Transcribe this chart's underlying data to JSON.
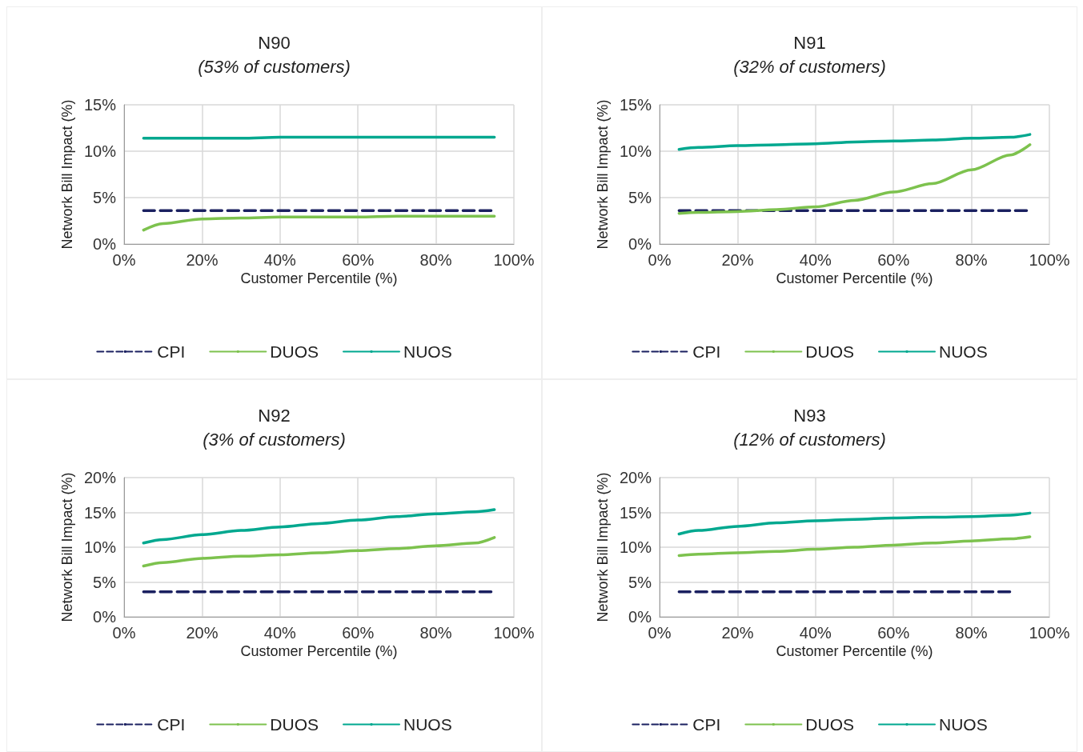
{
  "chart_data": [
    {
      "type": "line",
      "title": "N90",
      "subtitle": "(53% of customers)",
      "xlabel": "Customer Percentile (%)",
      "ylabel": "Network Bill Impact (%)",
      "xlim": [
        0,
        100
      ],
      "xticks": [
        {
          "value": 0,
          "label": "0%"
        },
        {
          "value": 20,
          "label": "20%"
        },
        {
          "value": 40,
          "label": "40%"
        },
        {
          "value": 60,
          "label": "60%"
        },
        {
          "value": 80,
          "label": "80%"
        },
        {
          "value": 100,
          "label": "100%"
        }
      ],
      "ylim": [
        0,
        15
      ],
      "yticks": [
        {
          "value": 0,
          "label": "0%"
        },
        {
          "value": 5,
          "label": "5%"
        },
        {
          "value": 10,
          "label": "10%"
        },
        {
          "value": 15,
          "label": "15%"
        }
      ],
      "grid": true,
      "legend": "bottom",
      "marker": "none",
      "series": [
        {
          "name": "CPI",
          "color": "#1a2060",
          "line_style": "dashed",
          "x": [
            5,
            95
          ],
          "values": [
            3.6,
            3.6
          ]
        },
        {
          "name": "DUOS",
          "color": "#7dc24e",
          "line_style": "solid",
          "x": [
            5,
            10,
            20,
            30,
            40,
            50,
            60,
            70,
            80,
            90,
            95
          ],
          "values": [
            1.5,
            2.2,
            2.7,
            2.8,
            2.9,
            2.9,
            2.9,
            3.0,
            3.0,
            3.0,
            3.0
          ]
        },
        {
          "name": "NUOS",
          "color": "#00a88f",
          "line_style": "solid",
          "x": [
            5,
            10,
            20,
            30,
            40,
            50,
            60,
            70,
            80,
            90,
            95
          ],
          "values": [
            11.4,
            11.4,
            11.4,
            11.4,
            11.5,
            11.5,
            11.5,
            11.5,
            11.5,
            11.5,
            11.5
          ]
        }
      ]
    },
    {
      "type": "line",
      "title": "N91",
      "subtitle": "(32% of customers)",
      "xlabel": "Customer Percentile (%)",
      "ylabel": "Network Bill Impact (%)",
      "xlim": [
        0,
        100
      ],
      "xticks": [
        {
          "value": 0,
          "label": "0%"
        },
        {
          "value": 20,
          "label": "20%"
        },
        {
          "value": 40,
          "label": "40%"
        },
        {
          "value": 60,
          "label": "60%"
        },
        {
          "value": 80,
          "label": "80%"
        },
        {
          "value": 100,
          "label": "100%"
        }
      ],
      "ylim": [
        0,
        15
      ],
      "yticks": [
        {
          "value": 0,
          "label": "0%"
        },
        {
          "value": 5,
          "label": "5%"
        },
        {
          "value": 10,
          "label": "10%"
        },
        {
          "value": 15,
          "label": "15%"
        }
      ],
      "grid": true,
      "legend": "bottom",
      "marker": "none",
      "series": [
        {
          "name": "CPI",
          "color": "#1a2060",
          "line_style": "dashed",
          "x": [
            5,
            95
          ],
          "values": [
            3.6,
            3.6
          ]
        },
        {
          "name": "DUOS",
          "color": "#7dc24e",
          "line_style": "solid",
          "x": [
            5,
            10,
            20,
            30,
            40,
            50,
            60,
            70,
            80,
            90,
            95
          ],
          "values": [
            3.3,
            3.4,
            3.5,
            3.7,
            4.0,
            4.7,
            5.6,
            6.5,
            8.0,
            9.6,
            10.7
          ]
        },
        {
          "name": "NUOS",
          "color": "#00a88f",
          "line_style": "solid",
          "x": [
            5,
            10,
            20,
            30,
            40,
            50,
            60,
            70,
            80,
            90,
            95
          ],
          "values": [
            10.2,
            10.4,
            10.6,
            10.7,
            10.8,
            11.0,
            11.1,
            11.2,
            11.4,
            11.5,
            11.8
          ]
        }
      ]
    },
    {
      "type": "line",
      "title": "N92",
      "subtitle": "(3% of customers)",
      "xlabel": "Customer Percentile (%)",
      "ylabel": "Network Bill Impact (%)",
      "xlim": [
        0,
        100
      ],
      "xticks": [
        {
          "value": 0,
          "label": "0%"
        },
        {
          "value": 20,
          "label": "20%"
        },
        {
          "value": 40,
          "label": "40%"
        },
        {
          "value": 60,
          "label": "60%"
        },
        {
          "value": 80,
          "label": "80%"
        },
        {
          "value": 100,
          "label": "100%"
        }
      ],
      "ylim": [
        0,
        20
      ],
      "yticks": [
        {
          "value": 0,
          "label": "0%"
        },
        {
          "value": 5,
          "label": "5%"
        },
        {
          "value": 10,
          "label": "10%"
        },
        {
          "value": 15,
          "label": "15%"
        },
        {
          "value": 20,
          "label": "20%"
        }
      ],
      "grid": true,
      "legend": "bottom",
      "marker": "none",
      "series": [
        {
          "name": "CPI",
          "color": "#1a2060",
          "line_style": "dashed",
          "x": [
            5,
            95
          ],
          "values": [
            3.6,
            3.6
          ]
        },
        {
          "name": "DUOS",
          "color": "#7dc24e",
          "line_style": "solid",
          "x": [
            5,
            10,
            20,
            30,
            40,
            50,
            60,
            70,
            80,
            90,
            95
          ],
          "values": [
            7.3,
            7.8,
            8.4,
            8.7,
            8.9,
            9.2,
            9.5,
            9.8,
            10.2,
            10.6,
            11.4
          ]
        },
        {
          "name": "NUOS",
          "color": "#00a88f",
          "line_style": "solid",
          "x": [
            5,
            10,
            20,
            30,
            40,
            50,
            60,
            70,
            80,
            90,
            95
          ],
          "values": [
            10.6,
            11.1,
            11.8,
            12.4,
            12.9,
            13.4,
            13.9,
            14.4,
            14.8,
            15.1,
            15.4
          ]
        }
      ]
    },
    {
      "type": "line",
      "title": "N93",
      "subtitle": "(12% of customers)",
      "xlabel": "Customer Percentile (%)",
      "ylabel": "Network Bill Impact (%)",
      "xlim": [
        0,
        100
      ],
      "xticks": [
        {
          "value": 0,
          "label": "0%"
        },
        {
          "value": 20,
          "label": "20%"
        },
        {
          "value": 40,
          "label": "40%"
        },
        {
          "value": 60,
          "label": "60%"
        },
        {
          "value": 80,
          "label": "80%"
        },
        {
          "value": 100,
          "label": "100%"
        }
      ],
      "ylim": [
        0,
        20
      ],
      "yticks": [
        {
          "value": 0,
          "label": "0%"
        },
        {
          "value": 5,
          "label": "5%"
        },
        {
          "value": 10,
          "label": "10%"
        },
        {
          "value": 15,
          "label": "15%"
        },
        {
          "value": 20,
          "label": "20%"
        }
      ],
      "grid": true,
      "legend": "bottom",
      "marker": "none",
      "series": [
        {
          "name": "CPI",
          "color": "#1a2060",
          "line_style": "dashed",
          "x": [
            5,
            90
          ],
          "values": [
            3.6,
            3.6
          ]
        },
        {
          "name": "DUOS",
          "color": "#7dc24e",
          "line_style": "solid",
          "x": [
            5,
            10,
            20,
            30,
            40,
            50,
            60,
            70,
            80,
            90,
            95
          ],
          "values": [
            8.8,
            9.0,
            9.2,
            9.4,
            9.7,
            10.0,
            10.3,
            10.6,
            10.9,
            11.2,
            11.5
          ]
        },
        {
          "name": "NUOS",
          "color": "#00a88f",
          "line_style": "solid",
          "x": [
            5,
            10,
            20,
            30,
            40,
            50,
            60,
            70,
            80,
            90,
            95
          ],
          "values": [
            11.9,
            12.4,
            13.0,
            13.5,
            13.8,
            14.0,
            14.2,
            14.3,
            14.4,
            14.6,
            14.9
          ]
        }
      ]
    }
  ]
}
